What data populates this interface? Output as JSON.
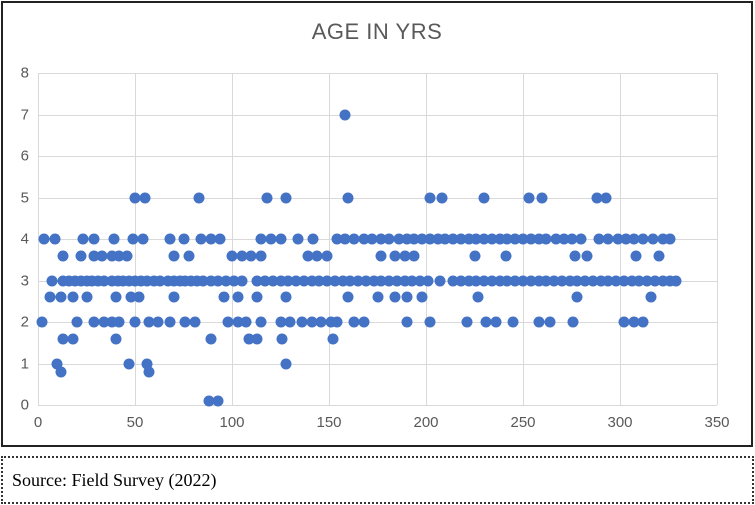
{
  "title": "AGE IN YRS",
  "source_note": "Source: Field Survey (2022)",
  "colors": {
    "marker": "#4472C4",
    "gridline": "#D9D9D9",
    "axis_text": "#595959",
    "title_text": "#595959",
    "frame_border": "#222222"
  },
  "chart_data": {
    "type": "scatter",
    "title": "AGE IN YRS",
    "xlabel": "",
    "ylabel": "",
    "xlim": [
      0,
      350
    ],
    "ylim": [
      0,
      8
    ],
    "x_ticks": [
      0,
      50,
      100,
      150,
      200,
      250,
      300,
      350
    ],
    "y_ticks": [
      0,
      1,
      2,
      3,
      4,
      5,
      6,
      7,
      8
    ],
    "grid": true,
    "legend": false,
    "marker_color": "#4472C4",
    "points": [
      [
        158,
        7
      ],
      [
        50,
        5
      ],
      [
        55,
        5
      ],
      [
        83,
        5
      ],
      [
        118,
        5
      ],
      [
        128,
        5
      ],
      [
        160,
        5
      ],
      [
        202,
        5
      ],
      [
        208,
        5
      ],
      [
        230,
        5
      ],
      [
        253,
        5
      ],
      [
        260,
        5
      ],
      [
        288,
        5
      ],
      [
        293,
        5
      ],
      [
        3,
        4
      ],
      [
        9,
        4
      ],
      [
        23,
        4
      ],
      [
        29,
        4
      ],
      [
        39,
        4
      ],
      [
        49,
        4
      ],
      [
        54,
        4
      ],
      [
        68,
        4
      ],
      [
        75,
        4
      ],
      [
        84,
        4
      ],
      [
        89,
        4
      ],
      [
        94,
        4
      ],
      [
        115,
        4
      ],
      [
        120,
        4
      ],
      [
        125,
        4
      ],
      [
        134,
        4
      ],
      [
        142,
        4
      ],
      [
        154,
        4
      ],
      [
        158,
        4
      ],
      [
        163,
        4
      ],
      [
        168,
        4
      ],
      [
        172,
        4
      ],
      [
        177,
        4
      ],
      [
        181,
        4
      ],
      [
        186,
        4
      ],
      [
        190,
        4
      ],
      [
        194,
        4
      ],
      [
        198,
        4
      ],
      [
        202,
        4
      ],
      [
        206,
        4
      ],
      [
        210,
        4
      ],
      [
        214,
        4
      ],
      [
        218,
        4
      ],
      [
        222,
        4
      ],
      [
        226,
        4
      ],
      [
        230,
        4
      ],
      [
        234,
        4
      ],
      [
        238,
        4
      ],
      [
        242,
        4
      ],
      [
        246,
        4
      ],
      [
        250,
        4
      ],
      [
        254,
        4
      ],
      [
        258,
        4
      ],
      [
        262,
        4
      ],
      [
        267,
        4
      ],
      [
        271,
        4
      ],
      [
        275,
        4
      ],
      [
        280,
        4
      ],
      [
        289,
        4
      ],
      [
        294,
        4
      ],
      [
        299,
        4
      ],
      [
        303,
        4
      ],
      [
        307,
        4
      ],
      [
        312,
        4
      ],
      [
        317,
        4
      ],
      [
        322,
        4
      ],
      [
        326,
        4
      ],
      [
        13,
        3.6
      ],
      [
        22,
        3.6
      ],
      [
        29,
        3.6
      ],
      [
        33,
        3.6
      ],
      [
        38,
        3.6
      ],
      [
        42,
        3.6
      ],
      [
        46,
        3.6
      ],
      [
        70,
        3.6
      ],
      [
        78,
        3.6
      ],
      [
        100,
        3.6
      ],
      [
        105,
        3.6
      ],
      [
        110,
        3.6
      ],
      [
        115,
        3.6
      ],
      [
        139,
        3.6
      ],
      [
        144,
        3.6
      ],
      [
        149,
        3.6
      ],
      [
        177,
        3.6
      ],
      [
        184,
        3.6
      ],
      [
        189,
        3.6
      ],
      [
        194,
        3.6
      ],
      [
        225,
        3.6
      ],
      [
        241,
        3.6
      ],
      [
        277,
        3.6
      ],
      [
        283,
        3.6
      ],
      [
        308,
        3.6
      ],
      [
        320,
        3.6
      ],
      [
        7,
        3
      ],
      [
        13,
        3
      ],
      [
        16,
        3
      ],
      [
        19,
        3
      ],
      [
        22,
        3
      ],
      [
        25,
        3
      ],
      [
        28,
        3
      ],
      [
        31,
        3
      ],
      [
        34,
        3
      ],
      [
        38,
        3
      ],
      [
        41,
        3
      ],
      [
        44,
        3
      ],
      [
        47,
        3
      ],
      [
        50,
        3
      ],
      [
        53,
        3
      ],
      [
        56,
        3
      ],
      [
        60,
        3
      ],
      [
        63,
        3
      ],
      [
        67,
        3
      ],
      [
        70,
        3
      ],
      [
        73,
        3
      ],
      [
        76,
        3
      ],
      [
        79,
        3
      ],
      [
        82,
        3
      ],
      [
        85,
        3
      ],
      [
        89,
        3
      ],
      [
        93,
        3
      ],
      [
        97,
        3
      ],
      [
        101,
        3
      ],
      [
        105,
        3
      ],
      [
        113,
        3
      ],
      [
        117,
        3
      ],
      [
        121,
        3
      ],
      [
        125,
        3
      ],
      [
        129,
        3
      ],
      [
        133,
        3
      ],
      [
        137,
        3
      ],
      [
        141,
        3
      ],
      [
        145,
        3
      ],
      [
        149,
        3
      ],
      [
        153,
        3
      ],
      [
        157,
        3
      ],
      [
        161,
        3
      ],
      [
        165,
        3
      ],
      [
        169,
        3
      ],
      [
        173,
        3
      ],
      [
        177,
        3
      ],
      [
        181,
        3
      ],
      [
        185,
        3
      ],
      [
        189,
        3
      ],
      [
        193,
        3
      ],
      [
        197,
        3
      ],
      [
        201,
        3
      ],
      [
        207,
        3
      ],
      [
        214,
        3
      ],
      [
        218,
        3
      ],
      [
        222,
        3
      ],
      [
        226,
        3
      ],
      [
        230,
        3
      ],
      [
        234,
        3
      ],
      [
        238,
        3
      ],
      [
        242,
        3
      ],
      [
        246,
        3
      ],
      [
        250,
        3
      ],
      [
        254,
        3
      ],
      [
        258,
        3
      ],
      [
        262,
        3
      ],
      [
        266,
        3
      ],
      [
        270,
        3
      ],
      [
        274,
        3
      ],
      [
        278,
        3
      ],
      [
        282,
        3
      ],
      [
        286,
        3
      ],
      [
        290,
        3
      ],
      [
        294,
        3
      ],
      [
        298,
        3
      ],
      [
        302,
        3
      ],
      [
        306,
        3
      ],
      [
        310,
        3
      ],
      [
        314,
        3
      ],
      [
        318,
        3
      ],
      [
        322,
        3
      ],
      [
        326,
        3
      ],
      [
        329,
        3
      ],
      [
        6,
        2.6
      ],
      [
        12,
        2.6
      ],
      [
        18,
        2.6
      ],
      [
        25,
        2.6
      ],
      [
        40,
        2.6
      ],
      [
        48,
        2.6
      ],
      [
        52,
        2.6
      ],
      [
        70,
        2.6
      ],
      [
        96,
        2.6
      ],
      [
        103,
        2.6
      ],
      [
        113,
        2.6
      ],
      [
        128,
        2.6
      ],
      [
        160,
        2.6
      ],
      [
        175,
        2.6
      ],
      [
        184,
        2.6
      ],
      [
        190,
        2.6
      ],
      [
        198,
        2.6
      ],
      [
        227,
        2.6
      ],
      [
        278,
        2.6
      ],
      [
        316,
        2.6
      ],
      [
        2,
        2
      ],
      [
        20,
        2
      ],
      [
        29,
        2
      ],
      [
        34,
        2
      ],
      [
        38,
        2
      ],
      [
        42,
        2
      ],
      [
        50,
        2
      ],
      [
        57,
        2
      ],
      [
        62,
        2
      ],
      [
        68,
        2
      ],
      [
        76,
        2
      ],
      [
        81,
        2
      ],
      [
        98,
        2
      ],
      [
        103,
        2
      ],
      [
        107,
        2
      ],
      [
        115,
        2
      ],
      [
        125,
        2
      ],
      [
        130,
        2
      ],
      [
        136,
        2
      ],
      [
        141,
        2
      ],
      [
        146,
        2
      ],
      [
        151,
        2
      ],
      [
        154,
        2
      ],
      [
        163,
        2
      ],
      [
        168,
        2
      ],
      [
        190,
        2
      ],
      [
        202,
        2
      ],
      [
        221,
        2
      ],
      [
        231,
        2
      ],
      [
        236,
        2
      ],
      [
        245,
        2
      ],
      [
        258,
        2
      ],
      [
        264,
        2
      ],
      [
        276,
        2
      ],
      [
        302,
        2
      ],
      [
        307,
        2
      ],
      [
        312,
        2
      ],
      [
        13,
        1.6
      ],
      [
        18,
        1.6
      ],
      [
        40,
        1.6
      ],
      [
        89,
        1.6
      ],
      [
        109,
        1.6
      ],
      [
        113,
        1.6
      ],
      [
        126,
        1.6
      ],
      [
        152,
        1.6
      ],
      [
        10,
        1
      ],
      [
        47,
        1
      ],
      [
        56,
        1
      ],
      [
        128,
        1
      ],
      [
        12,
        0.8
      ],
      [
        57,
        0.8
      ],
      [
        88,
        0.1
      ],
      [
        93,
        0.1
      ]
    ]
  }
}
